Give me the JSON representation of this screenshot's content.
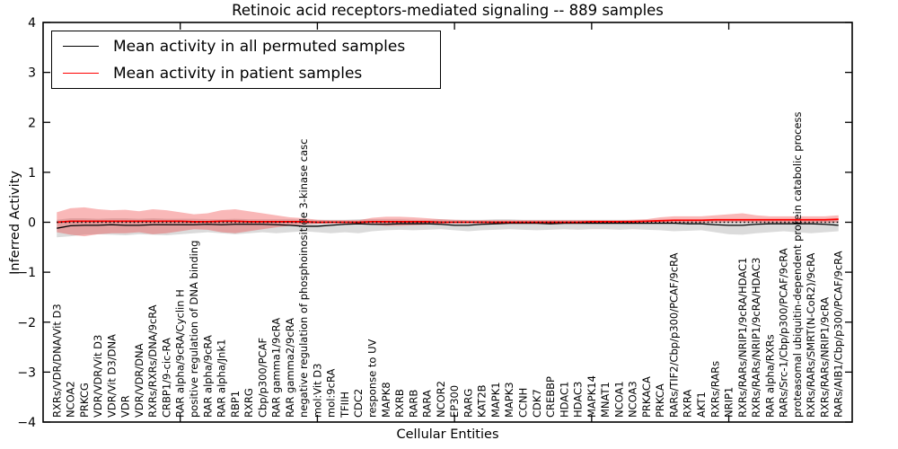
{
  "figure": {
    "title": "Retinoic acid receptors-mediated signaling -- 889 samples",
    "xlabel": "Cellular Entities",
    "ylabel": "Inferred Activity"
  },
  "legend": {
    "items": [
      {
        "label": "Mean activity in all permuted samples",
        "color": "#000000"
      },
      {
        "label": "Mean activity in patient samples",
        "color": "#ff0000"
      }
    ]
  },
  "chart_data": {
    "type": "line",
    "title": "Retinoic acid receptors-mediated signaling -- 889 samples",
    "xlabel": "Cellular Entities",
    "ylabel": "Inferred Activity",
    "ylim": [
      -4,
      4
    ],
    "yticks": [
      -4,
      -3,
      -2,
      -1,
      0,
      1,
      2,
      3,
      4
    ],
    "xlim": [
      0,
      59
    ],
    "xtick_values": [
      10,
      20,
      30,
      40,
      50
    ],
    "grid": false,
    "legend_position": "upper left",
    "zero_line": {
      "y": 0,
      "style": "dotted",
      "color": "#000000"
    },
    "categories": [
      "RXRs/VDR/DNA/Vit D3",
      "NCOA2",
      "PRKCG",
      "VDR/VDR/Vit D3",
      "VDR/Vit D3/DNA",
      "VDR",
      "VDR/VDR/DNA",
      "RXRs/RXRs/DNA/9cRA",
      "CRBP1/9-cic-RA",
      "RAR alpha/9cRA/Cyclin H",
      "positive regulation of DNA binding",
      "RAR alpha/9cRA",
      "RAR alpha/Jnk1",
      "RBP1",
      "RXRG",
      "Cbp/p300/PCAF",
      "RAR gamma1/9cRA",
      "RAR gamma2/9cRA",
      "negative regulation of phosphoinositide 3-kinase casc",
      "mol:Vit D3",
      "mol:9cRA",
      "TFIIH",
      "CDC2",
      "response to UV",
      "MAPK8",
      "RXRB",
      "RARB",
      "RARA",
      "NCOR2",
      "EP300",
      "RARG",
      "KAT2B",
      "MAPK1",
      "MAPK3",
      "CCNH",
      "CDK7",
      "CREBBP",
      "HDAC1",
      "HDAC3",
      "MAPK14",
      "MNAT1",
      "NCOA1",
      "NCOA3",
      "PRKACA",
      "PRKCA",
      "RARs/TIF2/Cbp/p300/PCAF/9cRA",
      "RXRA",
      "AKT1",
      "RXRs/RARs",
      "NRIP1",
      "RXRs/RARs/NRIP1/9cRA/HDAC1",
      "RXRs/RARs/NRIP1/9cRA/HDAC3",
      "RAR alpha/RXRs",
      "RARs/Src-1/Cbp/p300/PCAF/9cRA",
      "proteasomal ubiquitin-dependent protein catabolic process",
      "RXRs/RARs/SMRT(N-CoR2)/9cRA",
      "RXRs/RARs/NRIP1/9cRA",
      "RARs/AIB1/Cbp/p300/PCAF/9cRA"
    ],
    "series": [
      {
        "name": "Mean activity in all permuted samples",
        "color": "#000000",
        "line_width": 1.3,
        "band_color": "#999999",
        "band_opacity": 0.35,
        "values": [
          -0.12,
          -0.07,
          -0.06,
          -0.06,
          -0.05,
          -0.06,
          -0.06,
          -0.05,
          -0.05,
          -0.05,
          -0.05,
          -0.04,
          -0.05,
          -0.04,
          -0.04,
          -0.04,
          -0.05,
          -0.06,
          -0.08,
          -0.08,
          -0.06,
          -0.04,
          -0.03,
          -0.04,
          -0.04,
          -0.03,
          -0.03,
          -0.03,
          -0.04,
          -0.06,
          -0.06,
          -0.04,
          -0.03,
          -0.02,
          -0.02,
          -0.02,
          -0.03,
          -0.02,
          -0.02,
          -0.02,
          -0.02,
          -0.02,
          -0.02,
          -0.02,
          -0.02,
          -0.02,
          -0.03,
          -0.03,
          -0.05,
          -0.06,
          -0.06,
          -0.04,
          -0.03,
          -0.03,
          -0.03,
          -0.03,
          -0.04,
          -0.06
        ],
        "band_upper": [
          0.05,
          0.08,
          0.08,
          0.07,
          0.08,
          0.08,
          0.07,
          0.08,
          0.07,
          0.07,
          0.07,
          0.06,
          0.06,
          0.07,
          0.06,
          0.06,
          0.06,
          0.06,
          0.05,
          0.05,
          0.05,
          0.05,
          0.06,
          0.06,
          0.06,
          0.06,
          0.05,
          0.05,
          0.06,
          0.05,
          0.05,
          0.05,
          0.06,
          0.06,
          0.05,
          0.05,
          0.05,
          0.05,
          0.05,
          0.05,
          0.05,
          0.05,
          0.05,
          0.05,
          0.05,
          0.05,
          0.05,
          0.05,
          0.05,
          0.05,
          0.05,
          0.05,
          0.05,
          0.06,
          0.06,
          0.06,
          0.06,
          0.06
        ],
        "band_lower": [
          -0.3,
          -0.28,
          -0.25,
          -0.24,
          -0.25,
          -0.26,
          -0.24,
          -0.25,
          -0.26,
          -0.24,
          -0.22,
          -0.2,
          -0.22,
          -0.24,
          -0.22,
          -0.2,
          -0.22,
          -0.2,
          -0.18,
          -0.2,
          -0.22,
          -0.2,
          -0.22,
          -0.18,
          -0.16,
          -0.15,
          -0.16,
          -0.15,
          -0.14,
          -0.16,
          -0.18,
          -0.16,
          -0.15,
          -0.14,
          -0.15,
          -0.16,
          -0.15,
          -0.14,
          -0.15,
          -0.14,
          -0.14,
          -0.15,
          -0.14,
          -0.15,
          -0.16,
          -0.18,
          -0.17,
          -0.16,
          -0.2,
          -0.24,
          -0.25,
          -0.22,
          -0.2,
          -0.18,
          -0.2,
          -0.22,
          -0.2,
          -0.18
        ]
      },
      {
        "name": "Mean activity in patient samples",
        "color": "#ff0000",
        "line_width": 1.8,
        "band_color": "#ee3333",
        "band_opacity": 0.35,
        "values": [
          0.0,
          0.02,
          0.02,
          0.02,
          0.02,
          0.02,
          0.02,
          0.02,
          0.02,
          0.02,
          0.01,
          0.01,
          0.02,
          0.02,
          0.01,
          0.01,
          0.01,
          0.01,
          0.01,
          0.0,
          0.0,
          0.0,
          0.0,
          0.01,
          0.01,
          0.01,
          0.01,
          0.01,
          0.0,
          0.0,
          0.0,
          0.0,
          0.0,
          0.0,
          0.0,
          0.0,
          0.0,
          0.0,
          0.0,
          0.01,
          0.01,
          0.01,
          0.01,
          0.02,
          0.03,
          0.04,
          0.04,
          0.04,
          0.05,
          0.05,
          0.05,
          0.05,
          0.05,
          0.05,
          0.05,
          0.05,
          0.05,
          0.06
        ],
        "band_upper": [
          0.2,
          0.28,
          0.3,
          0.26,
          0.24,
          0.25,
          0.22,
          0.26,
          0.24,
          0.2,
          0.16,
          0.18,
          0.24,
          0.26,
          0.22,
          0.18,
          0.14,
          0.1,
          0.08,
          0.05,
          0.04,
          0.04,
          0.04,
          0.09,
          0.11,
          0.11,
          0.1,
          0.08,
          0.06,
          0.05,
          0.04,
          0.04,
          0.04,
          0.04,
          0.04,
          0.04,
          0.04,
          0.04,
          0.04,
          0.04,
          0.04,
          0.04,
          0.05,
          0.06,
          0.1,
          0.12,
          0.12,
          0.12,
          0.14,
          0.16,
          0.18,
          0.14,
          0.12,
          0.12,
          0.12,
          0.12,
          0.12,
          0.14
        ],
        "band_lower": [
          -0.2,
          -0.25,
          -0.28,
          -0.24,
          -0.22,
          -0.22,
          -0.2,
          -0.24,
          -0.22,
          -0.18,
          -0.14,
          -0.15,
          -0.2,
          -0.22,
          -0.18,
          -0.14,
          -0.1,
          -0.07,
          -0.05,
          -0.03,
          -0.02,
          -0.02,
          -0.02,
          -0.05,
          -0.07,
          -0.07,
          -0.06,
          -0.05,
          -0.03,
          -0.02,
          -0.02,
          -0.02,
          -0.02,
          -0.02,
          -0.02,
          -0.02,
          -0.02,
          -0.02,
          -0.02,
          -0.02,
          -0.02,
          -0.02,
          -0.02,
          -0.02,
          -0.01,
          -0.01,
          -0.01,
          -0.01,
          -0.01,
          0.0,
          0.0,
          -0.01,
          -0.01,
          -0.01,
          -0.01,
          -0.01,
          -0.01,
          -0.01
        ]
      }
    ]
  }
}
